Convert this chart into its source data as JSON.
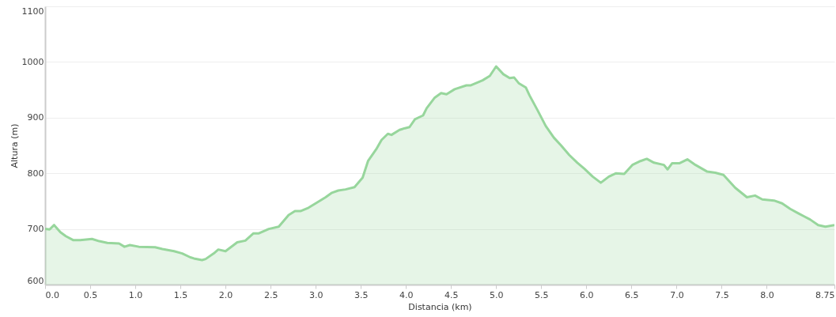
{
  "chart_data": {
    "type": "area",
    "xlabel": "Distancia   (km)",
    "ylabel": "Altura (m)",
    "x": [
      0,
      0.05,
      0.1,
      0.17,
      0.23,
      0.31,
      0.39,
      0.52,
      0.6,
      0.69,
      0.82,
      0.88,
      0.94,
      1.04,
      1.22,
      1.3,
      1.43,
      1.52,
      1.61,
      1.65,
      1.74,
      1.78,
      1.87,
      1.92,
      2.0,
      2.09,
      2.13,
      2.22,
      2.31,
      2.37,
      2.48,
      2.59,
      2.7,
      2.77,
      2.83,
      2.92,
      3.01,
      3.11,
      3.18,
      3.25,
      3.33,
      3.43,
      3.52,
      3.58,
      3.67,
      3.73,
      3.8,
      3.84,
      3.93,
      3.99,
      4.04,
      4.1,
      4.19,
      4.23,
      4.32,
      4.39,
      4.45,
      4.54,
      4.67,
      4.72,
      4.85,
      4.93,
      5.0,
      5.08,
      5.15,
      5.2,
      5.25,
      5.33,
      5.37,
      5.46,
      5.55,
      5.64,
      5.72,
      5.81,
      5.9,
      5.98,
      6.07,
      6.16,
      6.25,
      6.33,
      6.42,
      6.51,
      6.6,
      6.67,
      6.75,
      6.86,
      6.9,
      6.95,
      7.03,
      7.12,
      7.21,
      7.34,
      7.43,
      7.52,
      7.65,
      7.78,
      7.87,
      7.95,
      8.08,
      8.17,
      8.26,
      8.35,
      8.48,
      8.57,
      8.65,
      8.75
    ],
    "series": [
      {
        "color": "#97d69c",
        "values": [
          700,
          699,
          707,
          694,
          687,
          680,
          680,
          682,
          678,
          675,
          674,
          668,
          671,
          668,
          667,
          664,
          660,
          656,
          649,
          647,
          644,
          646,
          656,
          663,
          660,
          671,
          676,
          679,
          692,
          692,
          700,
          704,
          725,
          732,
          732,
          738,
          747,
          757,
          765,
          769,
          771,
          775,
          792,
          822,
          843,
          860,
          871,
          869,
          878,
          881,
          883,
          897,
          904,
          917,
          936,
          944,
          942,
          951,
          958,
          958,
          967,
          975,
          992,
          978,
          971,
          972,
          962,
          954,
          940,
          913,
          885,
          864,
          850,
          833,
          819,
          808,
          794,
          783,
          794,
          800,
          799,
          815,
          822,
          826,
          819,
          815,
          807,
          818,
          818,
          825,
          815,
          803,
          801,
          797,
          774,
          757,
          760,
          753,
          751,
          746,
          736,
          728,
          717,
          707,
          704,
          707
        ]
      }
    ],
    "xlim": [
      0,
      8.75
    ],
    "xticks": [
      {
        "value": 0,
        "label": "0.0"
      },
      0.5,
      {
        "value": 1,
        "label": "1.0"
      },
      1.5,
      {
        "value": 2,
        "label": "2.0"
      },
      2.5,
      {
        "value": 3,
        "label": "3.0"
      },
      3.5,
      {
        "value": 4,
        "label": "4.0"
      },
      4.5,
      {
        "value": 5,
        "label": "5.0"
      },
      5.5,
      {
        "value": 6,
        "label": "6.0"
      },
      6.5,
      {
        "value": 7,
        "label": "7.0"
      },
      7.5,
      {
        "value": 8,
        "label": "8.0"
      },
      8.75
    ],
    "ylim": [
      600,
      1100
    ],
    "yticks": [
      600,
      700,
      800,
      900,
      1000,
      1100
    ],
    "grid": "y"
  }
}
